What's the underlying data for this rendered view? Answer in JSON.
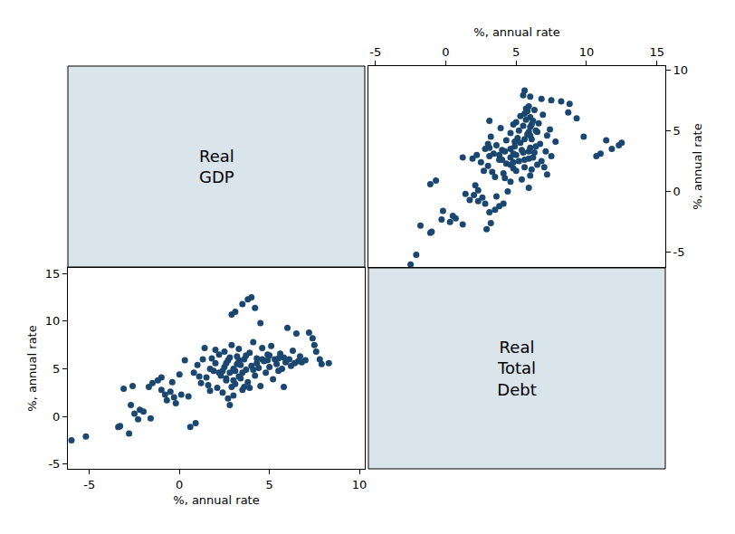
{
  "chart_data": {
    "type": "scatter_matrix",
    "x_label": "Real GDP",
    "y_label": "Real Total Debt",
    "axis_title": "%, annual rate",
    "color": "#1a476f",
    "marker": "circle",
    "grid": false,
    "xlim": [
      -6.2,
      10.3
    ],
    "ylim": [
      -5.5,
      15.6
    ],
    "xticks": [
      -5,
      0,
      5,
      10
    ],
    "yticks": [
      -5,
      0,
      5,
      10,
      15
    ],
    "x": [
      -6.0,
      -5.2,
      -3.4,
      -3.3,
      -3.1,
      -2.8,
      -2.6,
      -2.7,
      -2.5,
      -2.3,
      -2.2,
      -2.0,
      -1.7,
      -1.5,
      -1.6,
      -1.2,
      -1.0,
      -0.8,
      -0.7,
      -0.5,
      -0.3,
      -0.2,
      0.1,
      0.3,
      0.5,
      0.6,
      0.9,
      0.8,
      1.0,
      1.2,
      1.3,
      1.5,
      1.6,
      1.7,
      1.8,
      1.9,
      2.0,
      2.1,
      2.2,
      2.3,
      2.4,
      2.5,
      2.5,
      2.6,
      2.7,
      2.7,
      2.8,
      2.8,
      2.9,
      2.9,
      3.0,
      3.0,
      3.1,
      3.1,
      3.2,
      3.3,
      3.3,
      3.4,
      3.5,
      3.5,
      3.6,
      3.7,
      3.8,
      3.8,
      3.9,
      4.0,
      4.0,
      4.1,
      4.2,
      4.2,
      4.3,
      4.4,
      4.5,
      4.5,
      4.6,
      4.7,
      4.8,
      4.9,
      5.0,
      5.1,
      5.2,
      5.3,
      5.4,
      5.5,
      5.6,
      5.7,
      5.8,
      5.8,
      5.9,
      6.0,
      6.1,
      6.2,
      6.3,
      6.4,
      6.5,
      6.6,
      6.7,
      7.0,
      7.2,
      7.4,
      7.5,
      7.6,
      7.8,
      7.9,
      8.3,
      2.6,
      3.2,
      2.9,
      3.4,
      2.4,
      3.6,
      1.4,
      3.0,
      4.1,
      3.7,
      2.2,
      2.8,
      4.6,
      5.0,
      1.1,
      0.0,
      -1.0,
      -0.4,
      2.0,
      3.3,
      3.9,
      4.9,
      5.5,
      6.8,
      2.6,
      3.5,
      4.3,
      1.7,
      3.1
    ],
    "y": [
      -2.5,
      -2.1,
      -1.1,
      -1.0,
      2.9,
      -1.8,
      3.2,
      1.2,
      0.3,
      -0.3,
      0.7,
      0.5,
      3.1,
      3.5,
      -0.2,
      3.8,
      4.1,
      2.3,
      1.7,
      2.6,
      2.0,
      1.4,
      2.3,
      5.9,
      2.1,
      -1.1,
      -0.7,
      4.6,
      5.4,
      3.5,
      6.0,
      4.1,
      3.3,
      2.7,
      6.1,
      4.8,
      5.6,
      3.0,
      6.5,
      4.3,
      2.5,
      5.2,
      6.8,
      3.8,
      1.9,
      5.9,
      1.2,
      4.6,
      7.5,
      10.7,
      2.2,
      5.0,
      3.4,
      11.0,
      6.3,
      4.2,
      7.1,
      5.4,
      11.8,
      2.8,
      6.0,
      4.9,
      12.3,
      3.6,
      6.7,
      5.3,
      12.5,
      7.8,
      4.3,
      11.4,
      6.1,
      5.1,
      3.2,
      9.8,
      7.2,
      5.8,
      4.6,
      6.5,
      5.2,
      7.4,
      3.9,
      6.0,
      5.5,
      4.8,
      6.6,
      5.0,
      3.1,
      6.2,
      5.7,
      9.3,
      6.0,
      5.3,
      6.9,
      5.6,
      8.7,
      5.8,
      6.3,
      5.9,
      8.8,
      8.2,
      7.5,
      6.8,
      6.0,
      5.5,
      5.6,
      4.0,
      5.5,
      3.1,
      4.0,
      4.8,
      3.1,
      7.2,
      3.8,
      4.9,
      6.4,
      4.6,
      6.2,
      6.0,
      6.4,
      4.2,
      4.4,
      2.8,
      3.6,
      7.0,
      5.9,
      3.0,
      5.9,
      6.1,
      5.7,
      5.6,
      4.6,
      5.6,
      5.0,
      4.8
    ]
  }
}
